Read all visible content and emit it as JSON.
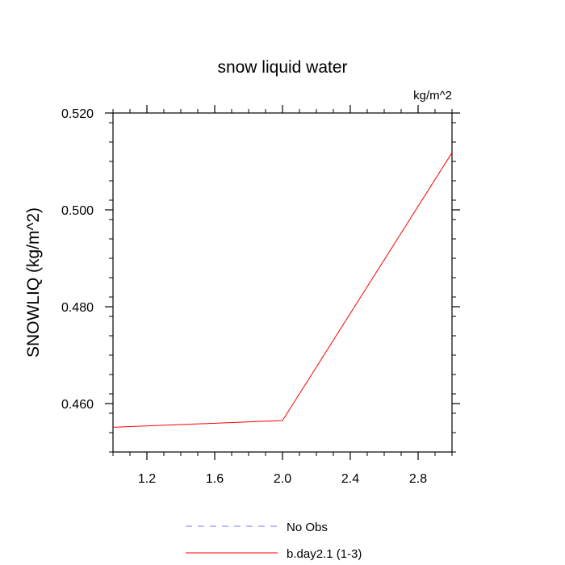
{
  "chart_data": {
    "type": "line",
    "title": "snow liquid water",
    "units": "kg/m^2",
    "xlabel": "",
    "ylabel": "SNOWLIQ  (kg/m^2)",
    "xlim": [
      1.0,
      3.0
    ],
    "ylim": [
      0.45,
      0.52
    ],
    "x_ticks": [
      1.2,
      1.6,
      2.0,
      2.4,
      2.8
    ],
    "x_tick_labels": [
      "1.2",
      "1.6",
      "2.0",
      "2.4",
      "2.8"
    ],
    "y_ticks": [
      0.46,
      0.48,
      0.5,
      0.52
    ],
    "y_tick_labels": [
      "0.460",
      "0.480",
      "0.500",
      "0.520"
    ],
    "grid": false,
    "legend_position": "bottom",
    "series": [
      {
        "name": "No Obs",
        "color": "#7777ff",
        "dash": true,
        "x": [],
        "y": []
      },
      {
        "name": "b.day2.1 (1-3)",
        "color": "#ff0000",
        "dash": false,
        "x": [
          1.0,
          2.0,
          3.0
        ],
        "y": [
          0.4551,
          0.4565,
          0.5118
        ]
      }
    ]
  }
}
